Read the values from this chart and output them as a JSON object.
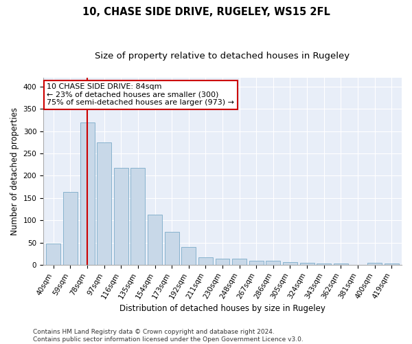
{
  "title1": "10, CHASE SIDE DRIVE, RUGELEY, WS15 2FL",
  "title2": "Size of property relative to detached houses in Rugeley",
  "xlabel": "Distribution of detached houses by size in Rugeley",
  "ylabel": "Number of detached properties",
  "categories": [
    "40sqm",
    "59sqm",
    "78sqm",
    "97sqm",
    "116sqm",
    "135sqm",
    "154sqm",
    "173sqm",
    "192sqm",
    "211sqm",
    "230sqm",
    "248sqm",
    "267sqm",
    "286sqm",
    "305sqm",
    "324sqm",
    "343sqm",
    "362sqm",
    "381sqm",
    "400sqm",
    "419sqm"
  ],
  "values": [
    48,
    163,
    320,
    275,
    218,
    218,
    113,
    75,
    40,
    18,
    15,
    15,
    10,
    10,
    6,
    5,
    3,
    3,
    1,
    5,
    3
  ],
  "bar_color": "#c8d8e8",
  "bar_edge_color": "#7aaac8",
  "vline_x_index": 2,
  "vline_color": "#cc0000",
  "annotation_text": "10 CHASE SIDE DRIVE: 84sqm\n← 23% of detached houses are smaller (300)\n75% of semi-detached houses are larger (973) →",
  "annotation_box_color": "#ffffff",
  "annotation_box_edge": "#cc0000",
  "ylim": [
    0,
    420
  ],
  "yticks": [
    0,
    50,
    100,
    150,
    200,
    250,
    300,
    350,
    400
  ],
  "background_color": "#e8eef8",
  "grid_color": "#ffffff",
  "footer_text": "Contains HM Land Registry data © Crown copyright and database right 2024.\nContains public sector information licensed under the Open Government Licence v3.0.",
  "title1_fontsize": 10.5,
  "title2_fontsize": 9.5,
  "xlabel_fontsize": 8.5,
  "ylabel_fontsize": 8.5,
  "annotation_fontsize": 8,
  "footer_fontsize": 6.5,
  "tick_fontsize": 7.5
}
